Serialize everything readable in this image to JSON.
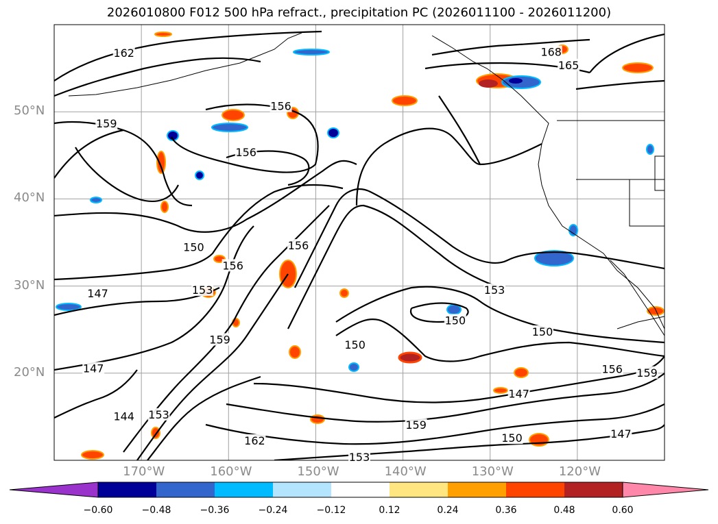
{
  "title": "2026010800 F012 500 hPa refract., precipitation PC (2026011100 - 2026011200)",
  "map": {
    "lat_labels": [
      {
        "text": "50°N",
        "lat": 50
      },
      {
        "text": "40°N",
        "lat": 40
      },
      {
        "text": "30°N",
        "lat": 30
      },
      {
        "text": "20°N",
        "lat": 20
      }
    ],
    "lon_labels": [
      {
        "text": "170°W",
        "lon": -170
      },
      {
        "text": "160°W",
        "lon": -160
      },
      {
        "text": "150°W",
        "lon": -150
      },
      {
        "text": "140°W",
        "lon": -140
      },
      {
        "text": "130°W",
        "lon": -130
      },
      {
        "text": "120°W",
        "lon": -120
      }
    ],
    "extent": {
      "lon_min": -180,
      "lon_max": -110,
      "lat_min": 10,
      "lat_max": 60
    },
    "contour_labels": [
      {
        "text": "162",
        "lon": -172,
        "lat": 56.7
      },
      {
        "text": "168",
        "lon": -123,
        "lat": 56.8
      },
      {
        "text": "165",
        "lon": -121,
        "lat": 55.3
      },
      {
        "text": "156",
        "lon": -154,
        "lat": 50.6
      },
      {
        "text": "159",
        "lon": -174,
        "lat": 48.6
      },
      {
        "text": "156",
        "lon": -158,
        "lat": 45.3
      },
      {
        "text": "150",
        "lon": -164,
        "lat": 34.4
      },
      {
        "text": "156",
        "lon": -152,
        "lat": 34.6
      },
      {
        "text": "156",
        "lon": -159.5,
        "lat": 32.3
      },
      {
        "text": "153",
        "lon": -163,
        "lat": 29.5
      },
      {
        "text": "147",
        "lon": -175,
        "lat": 29.1
      },
      {
        "text": "153",
        "lon": -129.5,
        "lat": 29.5
      },
      {
        "text": "150",
        "lon": -134,
        "lat": 26.0
      },
      {
        "text": "150",
        "lon": -124,
        "lat": 24.7
      },
      {
        "text": "159",
        "lon": -161,
        "lat": 23.8
      },
      {
        "text": "150",
        "lon": -145.5,
        "lat": 23.2
      },
      {
        "text": "147",
        "lon": -175.5,
        "lat": 20.5
      },
      {
        "text": "156",
        "lon": -116,
        "lat": 20.4
      },
      {
        "text": "159",
        "lon": -112,
        "lat": 20.0
      },
      {
        "text": "147",
        "lon": -126.7,
        "lat": 17.6
      },
      {
        "text": "144",
        "lon": -172,
        "lat": 15.0
      },
      {
        "text": "153",
        "lon": -168,
        "lat": 15.2
      },
      {
        "text": "159",
        "lon": -138.5,
        "lat": 14.0
      },
      {
        "text": "162",
        "lon": -157,
        "lat": 12.2
      },
      {
        "text": "150",
        "lon": -127.5,
        "lat": 12.5
      },
      {
        "text": "147",
        "lon": -115,
        "lat": 13.0
      },
      {
        "text": "153",
        "lon": -145,
        "lat": 10.3
      }
    ],
    "colors": {
      "contour": "#000000",
      "grid": "#a0a0a0",
      "land_border": "#000000"
    }
  },
  "colorbar": {
    "labels": [
      "−0.60",
      "−0.48",
      "−0.36",
      "−0.24",
      "−0.12",
      "0.12",
      "0.24",
      "0.36",
      "0.48",
      "0.60"
    ],
    "bins": [
      {
        "color": "#9933cc"
      },
      {
        "color": "#000099"
      },
      {
        "color": "#3366cc"
      },
      {
        "color": "#00bbff"
      },
      {
        "color": "#b3e5ff"
      },
      {
        "color": "#ffffff"
      },
      {
        "color": "#ffe680"
      },
      {
        "color": "#ffa000"
      },
      {
        "color": "#ff4400"
      },
      {
        "color": "#b22222"
      },
      {
        "color": "#ff88aa"
      }
    ]
  }
}
